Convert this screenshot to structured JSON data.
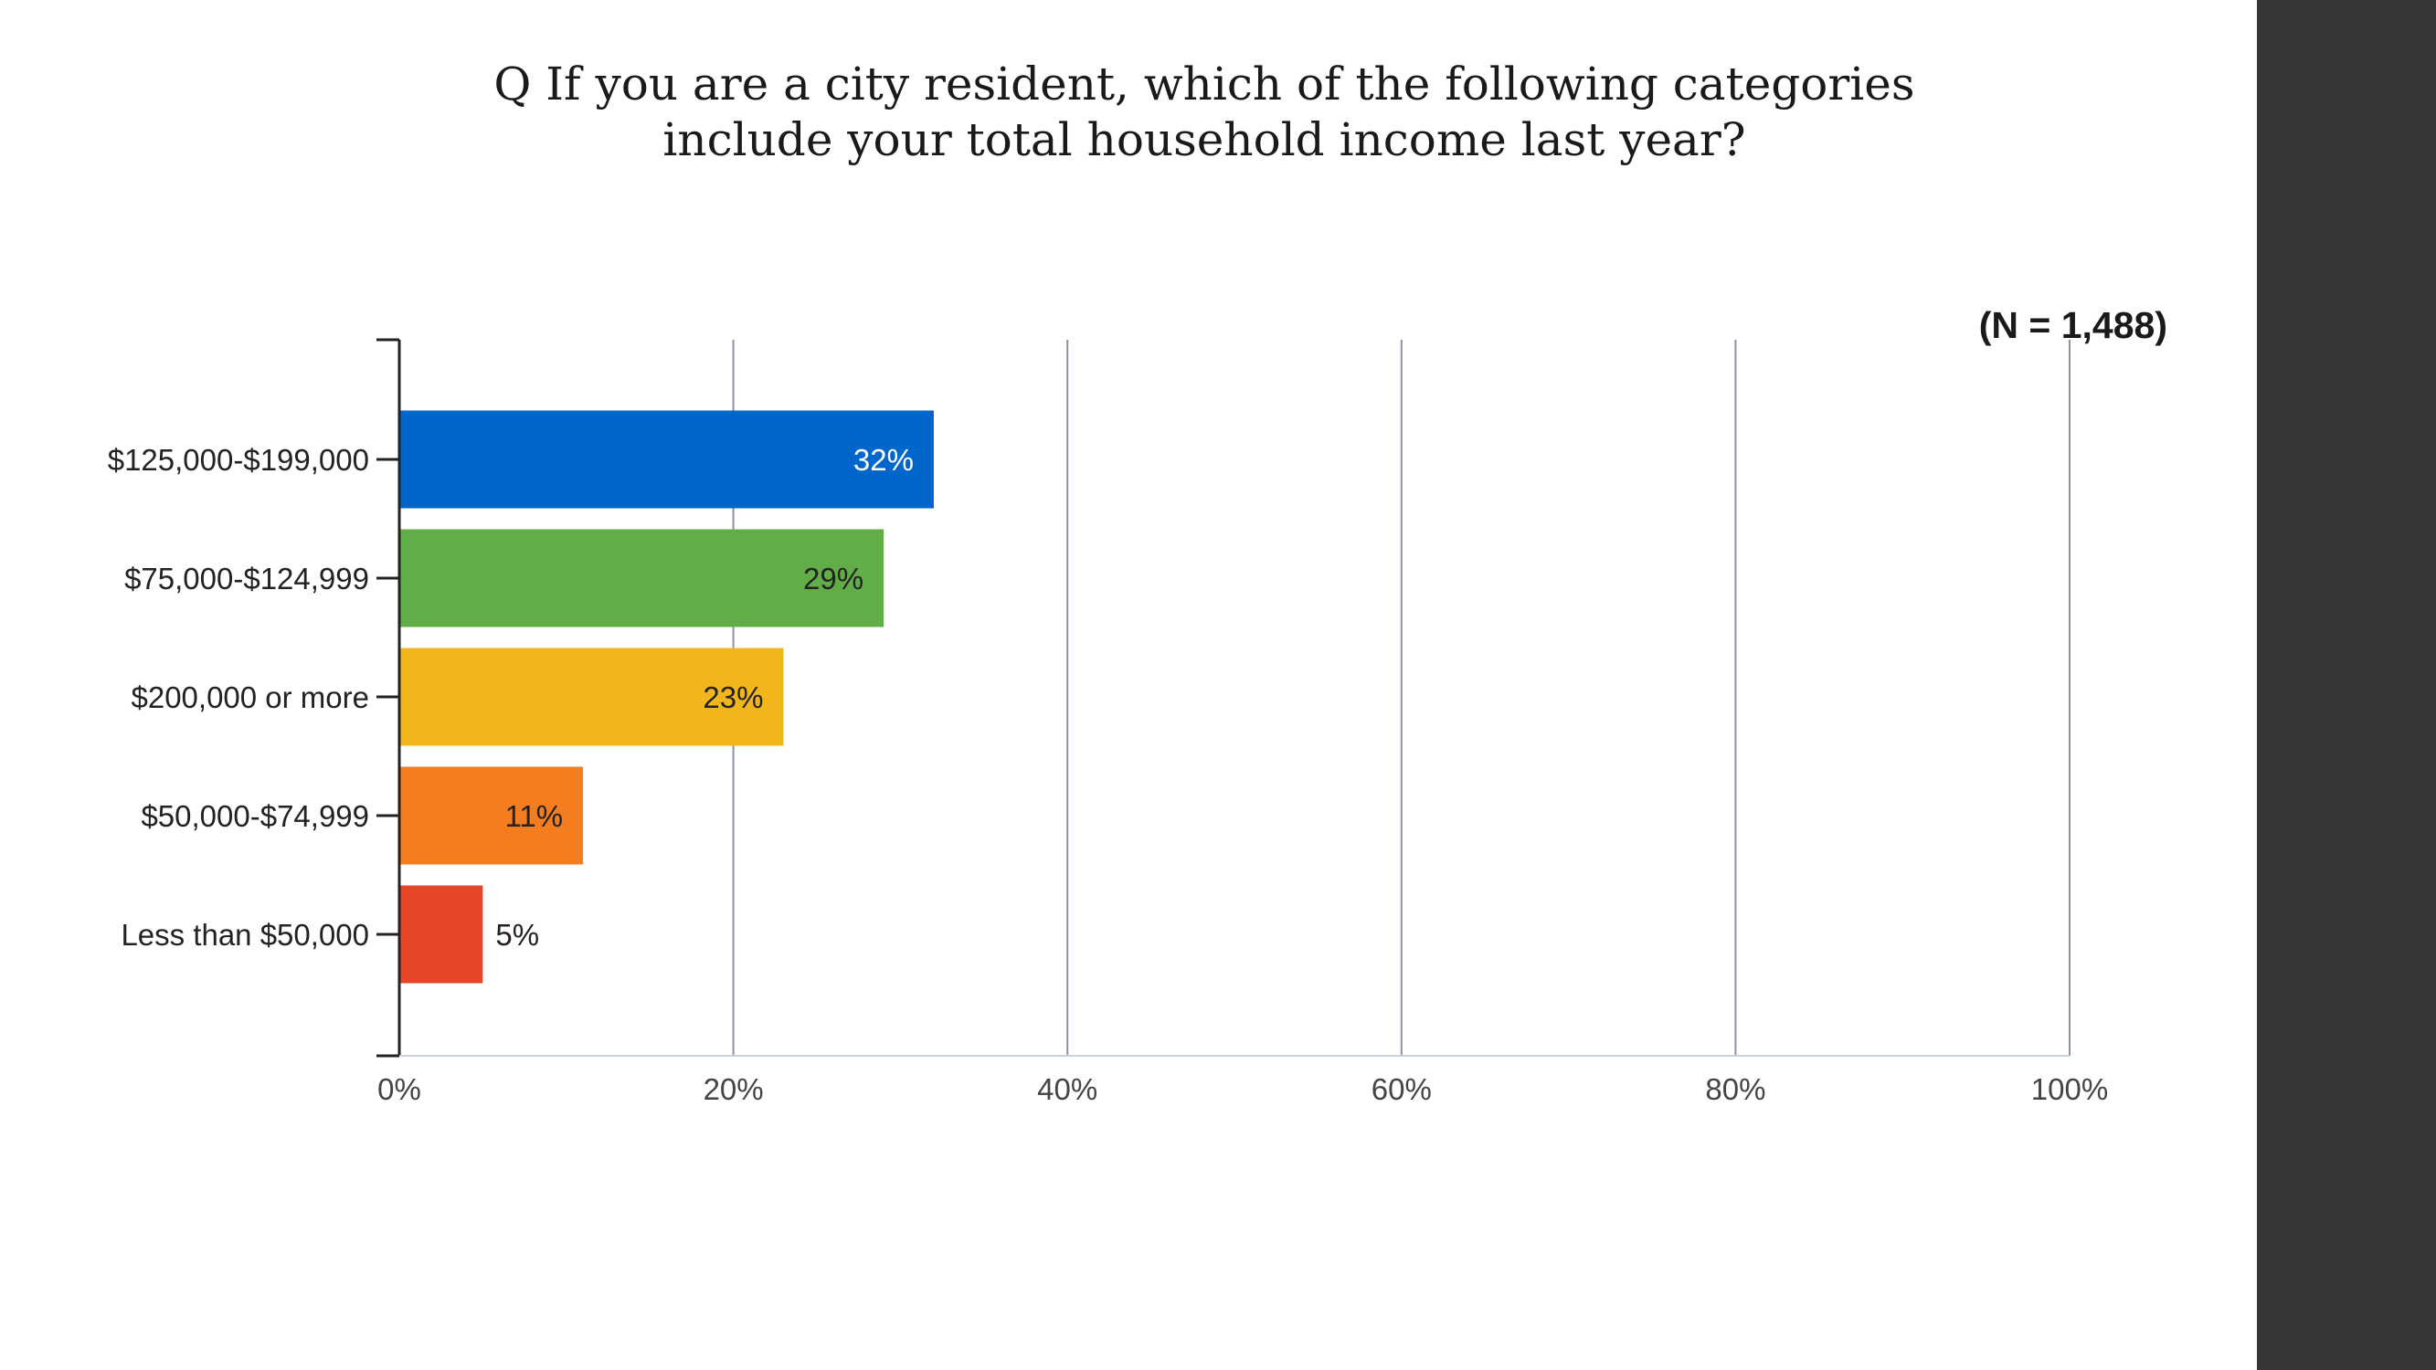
{
  "title_lines": [
    "Q If you are a city resident, which of the following categories",
    "include your total household income last year?"
  ],
  "n_label": "(N = 1,488)",
  "chart_data": {
    "type": "bar",
    "orientation": "horizontal",
    "title": "Q If you are a city resident, which of the following categories include your total household income last year?",
    "categories": [
      "$125,000-$199,000",
      "$75,000-$124,999",
      "$200,000 or more",
      "$50,000-$74,999",
      "Less than $50,000"
    ],
    "values": [
      32,
      29,
      23,
      11,
      5
    ],
    "value_labels": [
      "32%",
      "29%",
      "23%",
      "11%",
      "5%"
    ],
    "colors": [
      "#0066cc",
      "#62ad47",
      "#f2b61d",
      "#f47d20",
      "#e64628"
    ],
    "value_label_colors": [
      "#ffffff",
      "#222222",
      "#222222",
      "#222222",
      "#222222"
    ],
    "xlim": [
      0,
      100
    ],
    "xticks": [
      0,
      20,
      40,
      60,
      80,
      100
    ],
    "xtick_labels": [
      "0%",
      "20%",
      "40%",
      "60%",
      "80%",
      "100%"
    ],
    "grid": "vertical",
    "annotation": "(N = 1,488)"
  }
}
